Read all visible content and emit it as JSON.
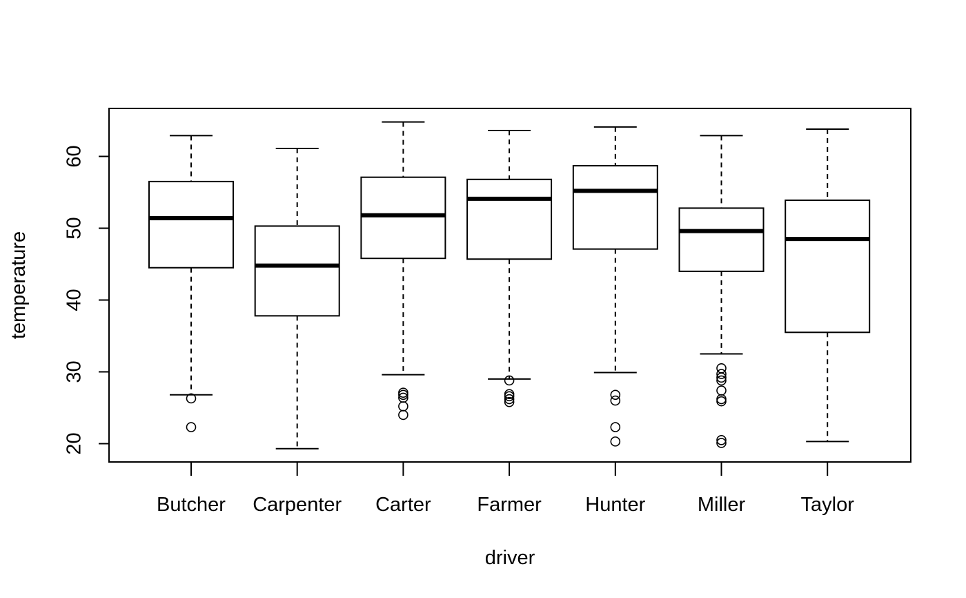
{
  "chart_data": {
    "type": "box",
    "title": "",
    "xlabel": "driver",
    "ylabel": "temperature",
    "ylim": [
      17.5,
      66
    ],
    "yticks": [
      20,
      30,
      40,
      50,
      60
    ],
    "grid": false,
    "categories": [
      "Butcher",
      "Carpenter",
      "Carter",
      "Farmer",
      "Hunter",
      "Miller",
      "Taylor"
    ],
    "boxes": [
      {
        "name": "Butcher",
        "whisker_low": 26.8,
        "q1": 44.5,
        "median": 51.4,
        "q3": 56.5,
        "whisker_high": 62.9,
        "outliers": [
          26.3,
          22.3
        ]
      },
      {
        "name": "Carpenter",
        "whisker_low": 19.3,
        "q1": 37.8,
        "median": 44.8,
        "q3": 50.3,
        "whisker_high": 61.1,
        "outliers": []
      },
      {
        "name": "Carter",
        "whisker_low": 29.6,
        "q1": 45.8,
        "median": 51.8,
        "q3": 57.1,
        "whisker_high": 64.8,
        "outliers": [
          27.1,
          26.8,
          26.4,
          25.2,
          24.0
        ]
      },
      {
        "name": "Farmer",
        "whisker_low": 29.0,
        "q1": 45.7,
        "median": 54.1,
        "q3": 56.8,
        "whisker_high": 63.6,
        "outliers": [
          28.8,
          26.9,
          26.6,
          26.2,
          25.8
        ]
      },
      {
        "name": "Hunter",
        "whisker_low": 29.9,
        "q1": 47.1,
        "median": 55.2,
        "q3": 58.7,
        "whisker_high": 64.1,
        "outliers": [
          26.8,
          26.0,
          22.3,
          20.3
        ]
      },
      {
        "name": "Miller",
        "whisker_low": 32.5,
        "q1": 44.0,
        "median": 49.6,
        "q3": 52.8,
        "whisker_high": 62.9,
        "outliers": [
          30.5,
          29.7,
          29.2,
          28.8,
          27.4,
          26.2,
          25.9,
          20.5,
          20.1
        ]
      },
      {
        "name": "Taylor",
        "whisker_low": 20.3,
        "q1": 35.5,
        "median": 48.5,
        "q3": 53.9,
        "whisker_high": 63.8,
        "outliers": []
      }
    ]
  }
}
